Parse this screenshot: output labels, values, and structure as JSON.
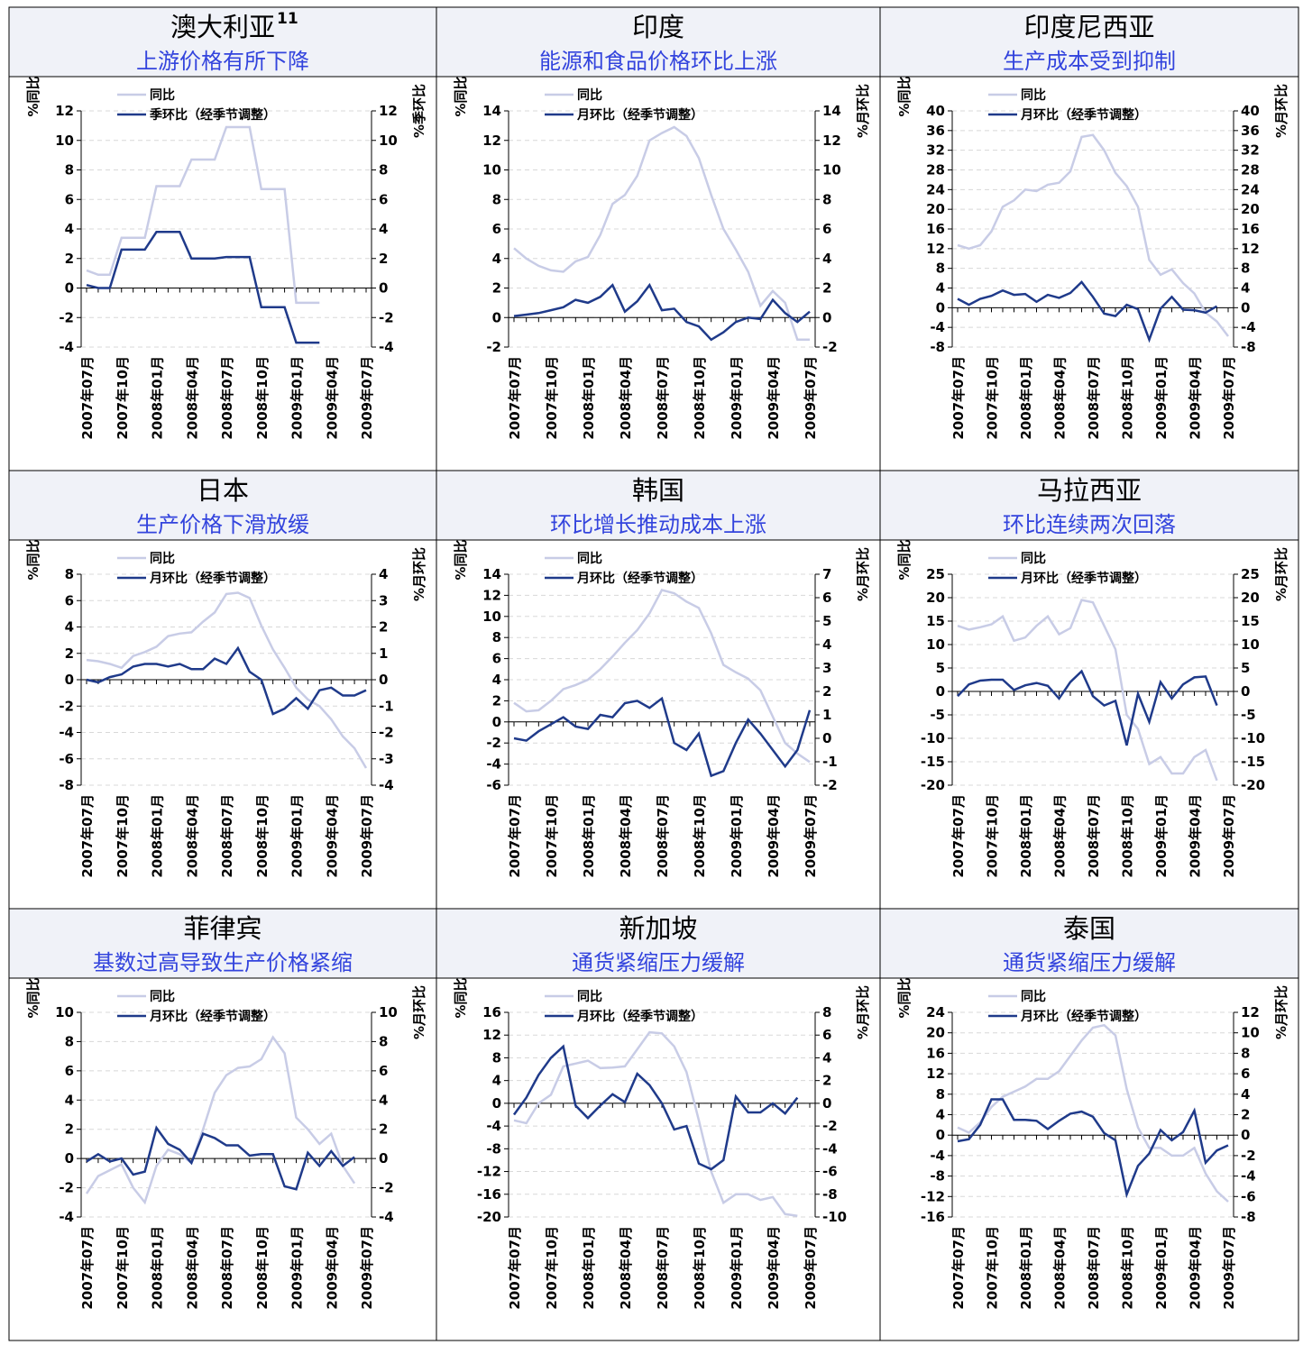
{
  "chart_data": [
    {
      "type": "line",
      "title": "澳大利亚",
      "title_sup": "11",
      "subtitle": "上游价格有所下降",
      "ylabel": "%同比",
      "y2label": "%季环比",
      "categories": [
        "2007年07月",
        null,
        null,
        "2007年10月",
        null,
        null,
        "2008年01月",
        null,
        null,
        "2008年04月",
        null,
        null,
        "2008年07月",
        null,
        null,
        "2008年10月",
        null,
        null,
        "2009年01月",
        null,
        null,
        "2009年04月",
        null,
        null,
        "2009年07月"
      ],
      "series": [
        {
          "name": "同比",
          "color": "#c8cce6",
          "values": [
            1.2,
            0.9,
            0.9,
            3.4,
            3.4,
            3.4,
            6.9,
            6.9,
            6.9,
            8.7,
            8.7,
            8.7,
            10.9,
            10.9,
            10.9,
            6.7,
            6.7,
            6.7,
            -1.0,
            -1.0,
            -1.0,
            null,
            null,
            null,
            null
          ]
        },
        {
          "name": "季环比（经季节调整）",
          "color": "#1f3a8a",
          "axis": "y2",
          "values": [
            0.2,
            0,
            0,
            2.6,
            2.6,
            2.6,
            3.8,
            3.8,
            3.8,
            2.0,
            2.0,
            2.0,
            2.1,
            2.1,
            2.1,
            -1.3,
            -1.3,
            -1.3,
            -3.7,
            -3.7,
            -3.7,
            null,
            null,
            null,
            null
          ]
        }
      ],
      "ylim": [
        -4,
        12
      ],
      "yticks": [
        -4,
        -2,
        0,
        2,
        4,
        6,
        8,
        10,
        12
      ],
      "y2lim": [
        -4,
        12
      ],
      "y2ticks": [
        -4,
        -2,
        0,
        2,
        4,
        6,
        8,
        10,
        12
      ]
    },
    {
      "type": "line",
      "title": "印度",
      "subtitle": "能源和食品价格环比上涨",
      "ylabel": "%同比",
      "y2label": "%月环比",
      "categories": [
        "2007年07月",
        null,
        null,
        "2007年10月",
        null,
        null,
        "2008年01月",
        null,
        null,
        "2008年04月",
        null,
        null,
        "2008年07月",
        null,
        null,
        "2008年10月",
        null,
        null,
        "2009年01月",
        null,
        null,
        "2009年04月",
        null,
        null,
        "2009年07月"
      ],
      "series": [
        {
          "name": "同比",
          "color": "#c8cce6",
          "values": [
            4.7,
            4.0,
            3.5,
            3.2,
            3.1,
            3.8,
            4.1,
            5.6,
            7.7,
            8.3,
            9.6,
            12.0,
            12.5,
            12.9,
            12.3,
            10.8,
            8.3,
            6.0,
            4.6,
            3.1,
            0.8,
            1.8,
            1.0,
            -1.5,
            -1.5
          ]
        },
        {
          "name": "月环比（经季节调整）",
          "color": "#1f3a8a",
          "axis": "y2",
          "values": [
            0.1,
            0.2,
            0.3,
            0.5,
            0.7,
            1.2,
            1.0,
            1.4,
            2.2,
            0.4,
            1.1,
            2.2,
            0.5,
            0.6,
            -0.3,
            -0.6,
            -1.5,
            -1.0,
            -0.3,
            0.0,
            -0.1,
            1.2,
            0.3,
            -0.3,
            0.4
          ]
        }
      ],
      "ylim": [
        -2,
        14
      ],
      "yticks": [
        -2,
        0,
        2,
        4,
        6,
        8,
        10,
        12,
        14
      ],
      "y2lim": [
        -2,
        14
      ],
      "y2ticks": [
        -2,
        0,
        2,
        4,
        6,
        8,
        10,
        12,
        14
      ]
    },
    {
      "type": "line",
      "title": "印度尼西亚",
      "subtitle": "生产成本受到抑制",
      "ylabel": "%同比",
      "y2label": "%月环比",
      "categories": [
        "2007年07月",
        null,
        null,
        "2007年10月",
        null,
        null,
        "2008年01月",
        null,
        null,
        "2008年04月",
        null,
        null,
        "2008年07月",
        null,
        null,
        "2008年10月",
        null,
        null,
        "2009年01月",
        null,
        null,
        "2009年04月",
        null,
        null,
        "2009年07月"
      ],
      "series": [
        {
          "name": "同比",
          "color": "#c8cce6",
          "values": [
            12.7,
            12.0,
            12.7,
            15.5,
            20.5,
            21.8,
            24.0,
            23.7,
            25.0,
            25.4,
            27.7,
            34.7,
            35.1,
            32.0,
            27.4,
            24.7,
            20.5,
            9.7,
            6.7,
            7.8,
            5.0,
            2.9,
            -1.0,
            -2.8,
            -5.8
          ]
        },
        {
          "name": "月环比（经季节调整）",
          "color": "#1f3a8a",
          "axis": "y2",
          "values": [
            1.8,
            0.6,
            1.8,
            2.4,
            3.5,
            2.6,
            2.8,
            1.2,
            2.6,
            2.0,
            3.0,
            5.2,
            2.2,
            -1.2,
            -1.7,
            0.6,
            -0.3,
            -6.5,
            -0.2,
            2.2,
            -0.4,
            -0.5,
            -1.0,
            0.3,
            null
          ]
        }
      ],
      "ylim": [
        -8,
        40
      ],
      "yticks": [
        -8,
        -4,
        0,
        4,
        8,
        12,
        16,
        20,
        24,
        28,
        32,
        36,
        40
      ],
      "y2lim": [
        -8,
        40
      ],
      "y2ticks": [
        -8,
        -4,
        0,
        4,
        8,
        12,
        16,
        20,
        24,
        28,
        32,
        36,
        40
      ]
    },
    {
      "type": "line",
      "title": "日本",
      "subtitle": "生产价格下滑放缓",
      "ylabel": "%同比",
      "y2label": "%月环比",
      "categories": [
        "2007年07月",
        null,
        null,
        "2007年10月",
        null,
        null,
        "2008年01月",
        null,
        null,
        "2008年04月",
        null,
        null,
        "2008年07月",
        null,
        null,
        "2008年10月",
        null,
        null,
        "2009年01月",
        null,
        null,
        "2009年04月",
        null,
        null,
        "2009年07月"
      ],
      "series": [
        {
          "name": "同比",
          "color": "#c8cce6",
          "values": [
            1.5,
            1.4,
            1.2,
            0.9,
            1.8,
            2.1,
            2.5,
            3.3,
            3.5,
            3.6,
            4.4,
            5.1,
            6.5,
            6.6,
            6.2,
            4.1,
            2.3,
            0.9,
            -0.6,
            -1.5,
            -2.0,
            -3.0,
            -4.3,
            -5.2,
            -6.7
          ]
        },
        {
          "name": "月环比（经季节调整）",
          "color": "#1f3a8a",
          "axis": "y2",
          "values": [
            0,
            -0.1,
            0.1,
            0.2,
            0.5,
            0.6,
            0.6,
            0.5,
            0.6,
            0.4,
            0.4,
            0.8,
            0.6,
            1.2,
            0.3,
            0,
            -1.3,
            -1.1,
            -0.7,
            -1.1,
            -0.4,
            -0.3,
            -0.6,
            -0.6,
            -0.4
          ]
        }
      ],
      "ylim": [
        -8,
        8
      ],
      "yticks": [
        -8,
        -6,
        -4,
        -2,
        0,
        2,
        4,
        6,
        8
      ],
      "y2lim": [
        -4,
        4
      ],
      "y2ticks": [
        -4,
        -3,
        -2,
        -1,
        0,
        1,
        2,
        3,
        4
      ]
    },
    {
      "type": "line",
      "title": "韩国",
      "subtitle": "环比增长推动成本上涨",
      "ylabel": "%同比",
      "y2label": "%月环比",
      "categories": [
        "2007年07月",
        null,
        null,
        "2007年10月",
        null,
        null,
        "2008年01月",
        null,
        null,
        "2008年04月",
        null,
        null,
        "2008年07月",
        null,
        null,
        "2008年10月",
        null,
        null,
        "2009年01月",
        null,
        null,
        "2009年04月",
        null,
        null,
        "2009年07月"
      ],
      "series": [
        {
          "name": "同比",
          "color": "#c8cce6",
          "values": [
            1.8,
            1.0,
            1.1,
            2.0,
            3.1,
            3.5,
            4.0,
            5.0,
            6.2,
            7.5,
            8.7,
            10.3,
            12.5,
            12.2,
            11.4,
            10.8,
            8.4,
            5.4,
            4.7,
            4.1,
            3.0,
            0.5,
            -2.0,
            -3.0,
            -3.8
          ]
        },
        {
          "name": "月环比（经季节调整）",
          "color": "#1f3a8a",
          "axis": "y2",
          "values": [
            0,
            -0.1,
            0.3,
            0.6,
            0.9,
            0.5,
            0.4,
            1.0,
            0.9,
            1.5,
            1.6,
            1.3,
            1.7,
            -0.2,
            -0.5,
            0.2,
            -1.6,
            -1.4,
            -0.2,
            0.8,
            0.2,
            -0.5,
            -1.2,
            -0.5,
            1.2
          ]
        }
      ],
      "ylim": [
        -6,
        14
      ],
      "yticks": [
        -6,
        -4,
        -2,
        0,
        2,
        4,
        6,
        8,
        10,
        12,
        14
      ],
      "y2lim": [
        -2,
        7
      ],
      "y2ticks": [
        -2,
        -1,
        0,
        1,
        2,
        3,
        4,
        5,
        6,
        7
      ]
    },
    {
      "type": "line",
      "title": "马拉西亚",
      "subtitle": "环比连续两次回落",
      "ylabel": "%同比",
      "y2label": "%月环比",
      "categories": [
        "2007年07月",
        null,
        null,
        "2007年10月",
        null,
        null,
        "2008年01月",
        null,
        null,
        "2008年04月",
        null,
        null,
        "2008年07月",
        null,
        null,
        "2008年10月",
        null,
        null,
        "2009年01月",
        null,
        null,
        "2009年04月",
        null,
        null,
        "2009年07月"
      ],
      "series": [
        {
          "name": "同比",
          "color": "#c8cce6",
          "values": [
            14.0,
            13.2,
            13.7,
            14.3,
            16.0,
            10.8,
            11.5,
            14.0,
            16.0,
            12.2,
            13.5,
            19.5,
            19.0,
            14.0,
            9.0,
            -5.0,
            -8.0,
            -15.5,
            -14.0,
            -17.5,
            -17.5,
            -14.0,
            -12.5,
            -19.0,
            null
          ]
        },
        {
          "name": "月环比（经季节调整）",
          "color": "#1f3a8a",
          "axis": "y2",
          "values": [
            -1.0,
            1.5,
            2.3,
            2.5,
            2.5,
            0.3,
            1.3,
            1.8,
            1.2,
            -1.5,
            2.0,
            4.3,
            -1.0,
            -3.0,
            -2.0,
            -11.5,
            -0.5,
            -6.5,
            2.0,
            -1.5,
            1.5,
            3.0,
            3.2,
            -3.0,
            null
          ]
        }
      ],
      "ylim": [
        -20,
        25
      ],
      "yticks": [
        -20,
        -15,
        -10,
        -5,
        0,
        5,
        10,
        15,
        20,
        25
      ],
      "y2lim": [
        -20,
        25
      ],
      "y2ticks": [
        -20,
        -15,
        -10,
        -5,
        0,
        5,
        10,
        15,
        20,
        25
      ]
    },
    {
      "type": "line",
      "title": "菲律宾",
      "subtitle": "基数过高导致生产价格紧缩",
      "ylabel": "%同比",
      "y2label": "%月环比",
      "categories": [
        "2007年07月",
        null,
        null,
        "2007年10月",
        null,
        null,
        "2008年01月",
        null,
        null,
        "2008年04月",
        null,
        null,
        "2008年07月",
        null,
        null,
        "2008年10月",
        null,
        null,
        "2009年01月",
        null,
        null,
        "2009年04月",
        null,
        null,
        "2009年07月"
      ],
      "series": [
        {
          "name": "同比",
          "color": "#c8cce6",
          "values": [
            -2.4,
            -1.2,
            -0.8,
            -0.4,
            -2.0,
            -3.0,
            -0.5,
            0.6,
            0.3,
            -0.3,
            2.0,
            4.5,
            5.7,
            6.2,
            6.3,
            6.8,
            8.3,
            7.2,
            2.8,
            2.0,
            1.0,
            1.7,
            -0.5,
            -1.7,
            null
          ]
        },
        {
          "name": "月环比（经季节调整）",
          "color": "#1f3a8a",
          "axis": "y2",
          "values": [
            -0.2,
            0.3,
            -0.2,
            0,
            -1.1,
            -0.9,
            2.1,
            1.0,
            0.6,
            -0.3,
            1.7,
            1.4,
            0.9,
            0.9,
            0.2,
            0.3,
            0.3,
            -1.9,
            -2.1,
            0.4,
            -0.5,
            0.5,
            -0.5,
            0.1,
            null
          ]
        }
      ],
      "ylim": [
        -4,
        10
      ],
      "yticks": [
        -4,
        -2,
        0,
        2,
        4,
        6,
        8,
        10
      ],
      "y2lim": [
        -4,
        10
      ],
      "y2ticks": [
        -4,
        -2,
        0,
        2,
        4,
        6,
        8,
        10
      ]
    },
    {
      "type": "line",
      "title": "新加坡",
      "subtitle": "通货紧缩压力缓解",
      "ylabel": "%同比",
      "y2label": "%月环比",
      "categories": [
        "2007年07月",
        null,
        null,
        "2007年10月",
        null,
        null,
        "2008年01月",
        null,
        null,
        "2008年04月",
        null,
        null,
        "2008年07月",
        null,
        null,
        "2008年10月",
        null,
        null,
        "2009年01月",
        null,
        null,
        "2009年04月",
        null,
        null,
        "2009年07月"
      ],
      "series": [
        {
          "name": "同比",
          "color": "#c8cce6",
          "values": [
            -3.0,
            -3.5,
            0,
            1.5,
            6.5,
            7.0,
            7.5,
            6.2,
            6.3,
            6.5,
            9.5,
            12.5,
            12.3,
            10.0,
            5.5,
            -3.0,
            -12.0,
            -17.5,
            -16.0,
            -16.0,
            -17.0,
            -16.5,
            -19.5,
            -19.8,
            null
          ]
        },
        {
          "name": "月环比（经季节调整）",
          "color": "#1f3a8a",
          "axis": "y2",
          "values": [
            -1.0,
            0.5,
            2.5,
            4.0,
            5.0,
            -0.2,
            -1.3,
            -0.2,
            0.8,
            0.1,
            2.6,
            1.6,
            0,
            -2.3,
            -2.0,
            -5.3,
            -5.8,
            -5.0,
            0.6,
            -0.8,
            -0.8,
            0,
            -0.9,
            0.5,
            null
          ]
        }
      ],
      "ylim": [
        -20,
        16
      ],
      "yticks": [
        -20,
        -16,
        -12,
        -8,
        -4,
        0,
        4,
        8,
        12,
        16
      ],
      "y2lim": [
        -10,
        8
      ],
      "y2ticks": [
        -10,
        -8,
        -6,
        -4,
        -2,
        0,
        2,
        4,
        6,
        8
      ]
    },
    {
      "type": "line",
      "title": "泰国",
      "subtitle": "通货紧缩压力缓解",
      "ylabel": "%同比",
      "y2label": "%月环比",
      "categories": [
        "2007年07月",
        null,
        null,
        "2007年10月",
        null,
        null,
        "2008年01月",
        null,
        null,
        "2008年04月",
        null,
        null,
        "2008年07月",
        null,
        null,
        "2008年10月",
        null,
        null,
        "2009年01月",
        null,
        null,
        "2009年04月",
        null,
        null,
        "2009年07月"
      ],
      "series": [
        {
          "name": "同比",
          "color": "#c8cce6",
          "values": [
            1.5,
            0.5,
            2.5,
            5.5,
            7.5,
            8.5,
            9.5,
            11,
            11,
            12.5,
            15.5,
            18.5,
            21.0,
            21.5,
            19.5,
            9.0,
            1.5,
            -2.5,
            -2.5,
            -4,
            -4,
            -2.5,
            -7.5,
            -11,
            -13
          ]
        },
        {
          "name": "月环比（经季节调整）",
          "color": "#1f3a8a",
          "axis": "y2",
          "values": [
            -0.6,
            -0.4,
            1.0,
            3.5,
            3.5,
            1.5,
            1.5,
            1.4,
            0.6,
            1.4,
            2.1,
            2.3,
            1.8,
            0.2,
            -0.5,
            -5.8,
            -3.0,
            -1.8,
            0.5,
            -0.5,
            0.3,
            2.4,
            -2.7,
            -1.5,
            -1.0
          ]
        }
      ],
      "ylim": [
        -16,
        24
      ],
      "yticks": [
        -16,
        -12,
        -8,
        -4,
        0,
        4,
        8,
        12,
        16,
        20,
        24
      ],
      "y2lim": [
        -8,
        12
      ],
      "y2ticks": [
        -8,
        -6,
        -4,
        -2,
        0,
        2,
        4,
        6,
        8,
        10,
        12
      ]
    }
  ]
}
